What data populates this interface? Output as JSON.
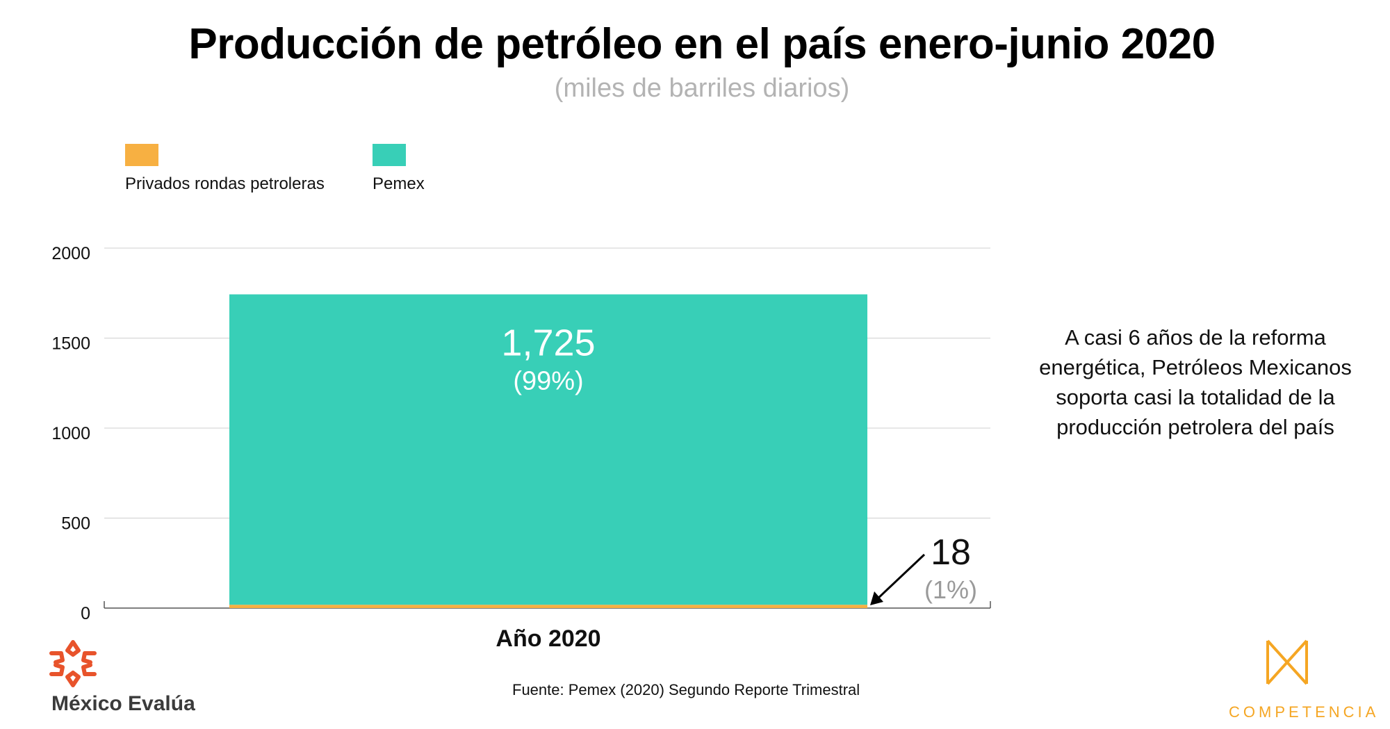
{
  "title": "Producción de petróleo en el país enero-junio 2020",
  "subtitle": "(miles de barriles diarios)",
  "colors": {
    "privados": "#f7b042",
    "pemex": "#38cfb7",
    "grid": "#cfcfcf",
    "muted": "#9a9a9a"
  },
  "legend": [
    {
      "label": "Privados rondas petroleras",
      "color": "#f7b042"
    },
    {
      "label": "Pemex",
      "color": "#38cfb7"
    }
  ],
  "chart_data": {
    "type": "bar",
    "stacked": true,
    "categories": [
      "Año 2020"
    ],
    "series": [
      {
        "name": "Privados rondas petroleras",
        "values": [
          18
        ]
      },
      {
        "name": "Pemex",
        "values": [
          1725
        ]
      }
    ],
    "ylim": [
      0,
      2000
    ],
    "yticks": [
      "0",
      "500",
      "1000",
      "1500",
      "2000"
    ],
    "grid": true,
    "legend_position": "top-left",
    "data_labels": {
      "pemex_value": "1,725",
      "pemex_pct": "(99%)",
      "privados_value": "18",
      "privados_pct": "(1%)"
    }
  },
  "annotation": "A casi 6 años de la reforma energética, Petróleos Mexicanos soporta casi la totalidad de la producción petrolera del país",
  "source": "Fuente: Pemex (2020) Segundo Reporte Trimestral",
  "logos": {
    "left": "México Evalúa",
    "right": "COMPETENCIA"
  }
}
